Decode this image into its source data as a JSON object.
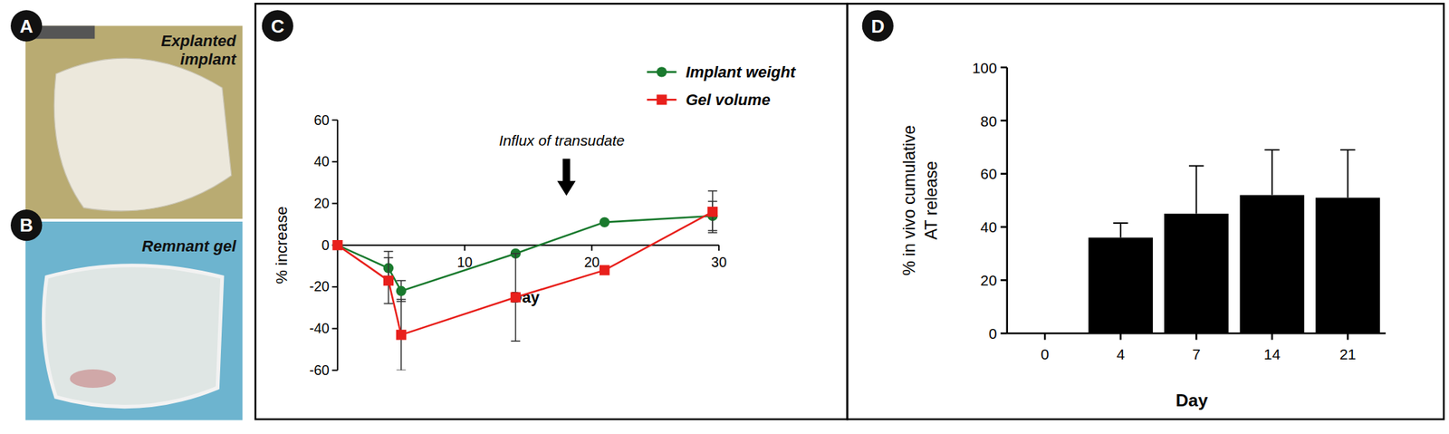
{
  "panels": [
    {
      "letter": "A",
      "caption": "Explanted implant"
    },
    {
      "letter": "B",
      "caption": "Remnant gel"
    },
    {
      "letter": "C"
    },
    {
      "letter": "D"
    }
  ],
  "chart_data": [
    {
      "type": "line",
      "x": [
        0,
        4,
        5,
        14,
        21,
        29.5
      ],
      "xlim": [
        0,
        30
      ],
      "xticks": [
        10,
        20,
        30
      ],
      "ylim": [
        -60,
        60
      ],
      "yticks": [
        -60,
        -40,
        -20,
        0,
        20,
        40,
        60
      ],
      "xlabel": "Day",
      "ylabel": "% increase",
      "legend": "upper right",
      "annotations": [
        {
          "text": "Influx of transudate",
          "x": 18
        }
      ],
      "series": [
        {
          "name": "Implant weight",
          "color": "#1a7a2e",
          "marker": "circle",
          "values": [
            0,
            -11,
            -22,
            -4,
            11,
            14
          ],
          "errors": [
            0,
            8,
            5,
            0,
            0,
            7
          ]
        },
        {
          "name": "Gel volume",
          "color": "#e8201c",
          "marker": "square",
          "values": [
            0,
            -17,
            -43,
            -25,
            -12,
            16
          ],
          "errors": [
            0,
            11,
            17,
            21,
            0,
            10
          ]
        }
      ]
    },
    {
      "type": "bar",
      "categories": [
        "0",
        "4",
        "7",
        "14",
        "21"
      ],
      "values": [
        0,
        36,
        45,
        52,
        51
      ],
      "errors": [
        0,
        5.5,
        18,
        17,
        18
      ],
      "color": "#000000",
      "ylim": [
        0,
        100
      ],
      "yticks": [
        0,
        20,
        40,
        60,
        80,
        100
      ],
      "xlabel": "Day",
      "ylabel": "% in vivo cumulative AT release"
    }
  ]
}
